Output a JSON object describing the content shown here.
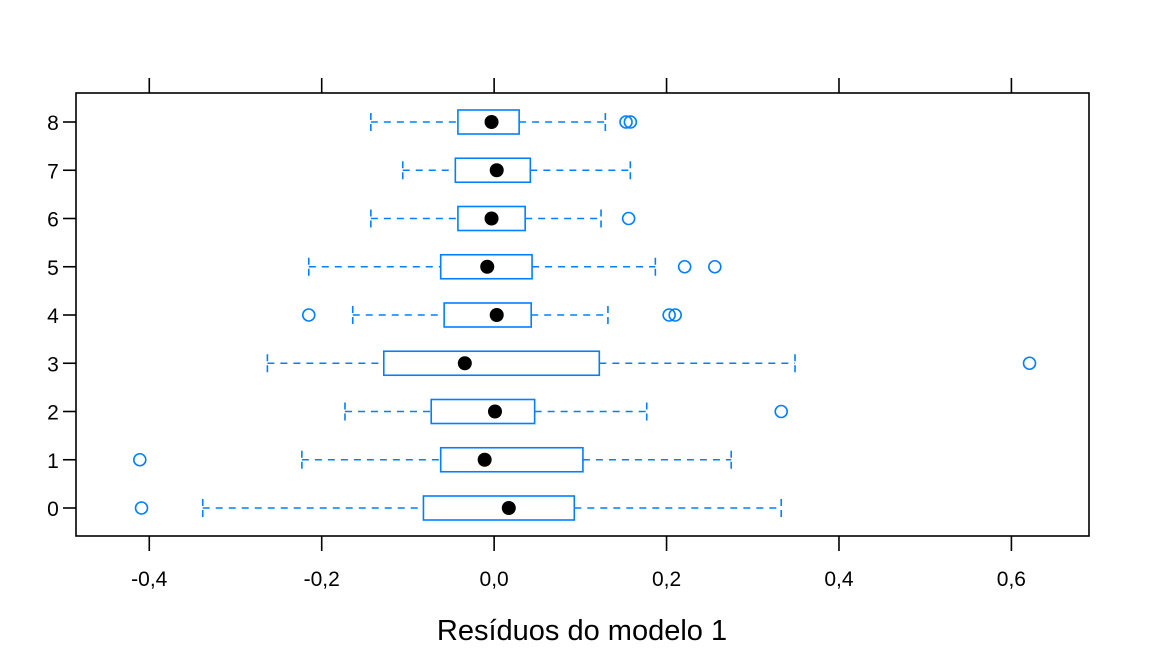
{
  "chart_data": {
    "type": "boxplot",
    "orientation": "horizontal",
    "title": "",
    "xlabel": "Resíduos do modelo 1",
    "ylabel": "",
    "xlim": [
      -0.485,
      0.69
    ],
    "x_ticks": [
      -0.4,
      -0.2,
      0.0,
      0.2,
      0.4,
      0.6
    ],
    "x_tick_labels": [
      "-0,4",
      "-0,2",
      "0,0",
      "0,2",
      "0,4",
      "0,6"
    ],
    "categories": [
      "0",
      "1",
      "2",
      "3",
      "4",
      "5",
      "6",
      "7",
      "8"
    ],
    "colors": {
      "box": "#0080ff",
      "median": "#000000",
      "frame": "#000000"
    },
    "boxes": [
      {
        "category": "0",
        "whisker_low": -0.338,
        "q1": -0.082,
        "median": 0.017,
        "q3": 0.093,
        "whisker_high": 0.333,
        "outliers": [
          -0.409
        ]
      },
      {
        "category": "1",
        "whisker_low": -0.223,
        "q1": -0.062,
        "median": -0.011,
        "q3": 0.103,
        "whisker_high": 0.275,
        "outliers": [
          -0.411
        ]
      },
      {
        "category": "2",
        "whisker_low": -0.173,
        "q1": -0.073,
        "median": 0.001,
        "q3": 0.047,
        "whisker_high": 0.177,
        "outliers": [
          0.333
        ]
      },
      {
        "category": "3",
        "whisker_low": -0.263,
        "q1": -0.128,
        "median": -0.034,
        "q3": 0.122,
        "whisker_high": 0.349,
        "outliers": [
          0.621
        ]
      },
      {
        "category": "4",
        "whisker_low": -0.164,
        "q1": -0.058,
        "median": 0.003,
        "q3": 0.043,
        "whisker_high": 0.132,
        "outliers": [
          -0.215,
          0.203,
          0.21
        ]
      },
      {
        "category": "5",
        "whisker_low": -0.215,
        "q1": -0.062,
        "median": -0.008,
        "q3": 0.044,
        "whisker_high": 0.187,
        "outliers": [
          0.221,
          0.256
        ]
      },
      {
        "category": "6",
        "whisker_low": -0.143,
        "q1": -0.042,
        "median": -0.003,
        "q3": 0.036,
        "whisker_high": 0.124,
        "outliers": [
          0.156
        ]
      },
      {
        "category": "7",
        "whisker_low": -0.106,
        "q1": -0.045,
        "median": 0.003,
        "q3": 0.042,
        "whisker_high": 0.158,
        "outliers": []
      },
      {
        "category": "8",
        "whisker_low": -0.143,
        "q1": -0.042,
        "median": -0.003,
        "q3": 0.029,
        "whisker_high": 0.129,
        "outliers": [
          0.153,
          0.158
        ]
      }
    ]
  }
}
